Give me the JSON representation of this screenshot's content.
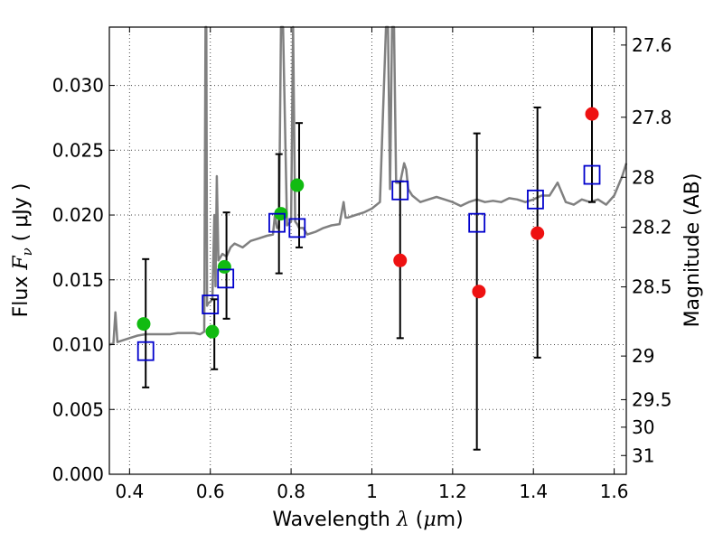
{
  "chart_data": {
    "type": "scatter",
    "xlabel": {
      "prefix": "Wavelength  ",
      "symbol": "λ",
      "unit_open": " (",
      "unit_mu": "μ",
      "unit_rest": "m)"
    },
    "ylabel": {
      "prefix": "Flux  ",
      "symbol": "F",
      "sub": "ν",
      "unit": "  ( μJy )"
    },
    "y2label": "Magnitude (AB)",
    "xlim": [
      0.35,
      1.63
    ],
    "ylim": [
      0.0,
      0.0345
    ],
    "grid": true,
    "x_ticks": [
      {
        "value": 0.4,
        "label": "0.4"
      },
      {
        "value": 0.6,
        "label": "0.6"
      },
      {
        "value": 0.8,
        "label": "0.8"
      },
      {
        "value": 1.0,
        "label": "1"
      },
      {
        "value": 1.2,
        "label": "1.2"
      },
      {
        "value": 1.4,
        "label": "1.4"
      },
      {
        "value": 1.6,
        "label": "1.6"
      }
    ],
    "y_ticks": [
      {
        "value": 0.0,
        "label": "0.000"
      },
      {
        "value": 0.005,
        "label": "0.005"
      },
      {
        "value": 0.01,
        "label": "0.010"
      },
      {
        "value": 0.015,
        "label": "0.015"
      },
      {
        "value": 0.02,
        "label": "0.020"
      },
      {
        "value": 0.025,
        "label": "0.025"
      },
      {
        "value": 0.03,
        "label": "0.030"
      }
    ],
    "y2_ticks": [
      {
        "value": 27.6,
        "label": "27.6"
      },
      {
        "value": 27.8,
        "label": "27.8"
      },
      {
        "value": 28.0,
        "label": "28"
      },
      {
        "value": 28.2,
        "label": "28.2"
      },
      {
        "value": 28.5,
        "label": "28.5"
      },
      {
        "value": 29.0,
        "label": "29"
      },
      {
        "value": 29.5,
        "label": "29.5"
      },
      {
        "value": 30.0,
        "label": "30"
      },
      {
        "value": 31.0,
        "label": "31"
      }
    ],
    "model_spectrum": {
      "color": "#808080",
      "x": [
        0.35,
        0.36,
        0.365,
        0.37,
        0.38,
        0.4,
        0.42,
        0.44,
        0.46,
        0.48,
        0.5,
        0.52,
        0.54,
        0.56,
        0.575,
        0.585,
        0.588,
        0.59,
        0.592,
        0.595,
        0.6,
        0.605,
        0.61,
        0.613,
        0.616,
        0.62,
        0.63,
        0.64,
        0.65,
        0.66,
        0.68,
        0.7,
        0.72,
        0.74,
        0.755,
        0.76,
        0.765,
        0.77,
        0.775,
        0.78,
        0.79,
        0.8,
        0.805,
        0.81,
        0.815,
        0.82,
        0.83,
        0.84,
        0.86,
        0.88,
        0.9,
        0.92,
        0.93,
        0.935,
        0.94,
        0.96,
        0.98,
        1.0,
        1.02,
        1.035,
        1.04,
        1.045,
        1.05,
        1.055,
        1.06,
        1.07,
        1.08,
        1.085,
        1.09,
        1.1,
        1.12,
        1.14,
        1.16,
        1.18,
        1.2,
        1.22,
        1.24,
        1.26,
        1.28,
        1.3,
        1.32,
        1.34,
        1.36,
        1.38,
        1.4,
        1.42,
        1.44,
        1.46,
        1.48,
        1.5,
        1.52,
        1.54,
        1.56,
        1.58,
        1.6,
        1.62,
        1.63
      ],
      "y": [
        0.01,
        0.0101,
        0.0125,
        0.0102,
        0.0103,
        0.0105,
        0.0107,
        0.0108,
        0.0108,
        0.0108,
        0.0108,
        0.0109,
        0.0109,
        0.0109,
        0.0108,
        0.011,
        0.0345,
        0.0345,
        0.013,
        0.0132,
        0.0133,
        0.0135,
        0.02,
        0.0145,
        0.023,
        0.0165,
        0.017,
        0.0168,
        0.0175,
        0.0178,
        0.0175,
        0.018,
        0.0182,
        0.0184,
        0.0185,
        0.02,
        0.019,
        0.019,
        0.0345,
        0.0345,
        0.0192,
        0.0195,
        0.0345,
        0.0195,
        0.0193,
        0.019,
        0.019,
        0.0185,
        0.0187,
        0.019,
        0.0192,
        0.0193,
        0.021,
        0.0198,
        0.0198,
        0.02,
        0.0202,
        0.0205,
        0.021,
        0.0345,
        0.0345,
        0.022,
        0.0345,
        0.0345,
        0.0225,
        0.0225,
        0.024,
        0.0235,
        0.022,
        0.0215,
        0.021,
        0.0212,
        0.0214,
        0.0212,
        0.021,
        0.0207,
        0.021,
        0.0212,
        0.021,
        0.0211,
        0.021,
        0.0213,
        0.0212,
        0.021,
        0.0212,
        0.0215,
        0.0215,
        0.0225,
        0.021,
        0.0208,
        0.0212,
        0.021,
        0.0212,
        0.0208,
        0.0215,
        0.023,
        0.024
      ]
    },
    "observed_green": {
      "color": "#11bb11",
      "x": [
        0.435,
        0.605,
        0.635,
        0.775,
        0.815
      ],
      "y": [
        0.0116,
        0.011,
        0.016,
        0.0201,
        0.0223
      ]
    },
    "observed_red": {
      "color": "#ee1111",
      "x": [
        1.07,
        1.265,
        1.41,
        1.545
      ],
      "y": [
        0.0165,
        0.0141,
        0.0186,
        0.0278
      ]
    },
    "model_squares": {
      "color": "#0000cc",
      "x": [
        0.44,
        0.6,
        0.638,
        0.765,
        0.815,
        1.07,
        1.26,
        1.405,
        1.545
      ],
      "y": [
        0.0095,
        0.0131,
        0.0151,
        0.0194,
        0.019,
        0.0219,
        0.0194,
        0.0212,
        0.0231
      ]
    },
    "error_bars": {
      "color": "#000000",
      "items": [
        {
          "x": 0.44,
          "low": 0.0067,
          "high": 0.0166
        },
        {
          "x": 0.61,
          "low": 0.0081,
          "high": 0.0135
        },
        {
          "x": 0.64,
          "low": 0.012,
          "high": 0.0202
        },
        {
          "x": 0.77,
          "low": 0.0155,
          "high": 0.0247
        },
        {
          "x": 0.82,
          "low": 0.0175,
          "high": 0.0271
        },
        {
          "x": 1.07,
          "low": 0.0105,
          "high": 0.0226
        },
        {
          "x": 1.26,
          "low": 0.0019,
          "high": 0.0263
        },
        {
          "x": 1.41,
          "low": 0.009,
          "high": 0.0283
        },
        {
          "x": 1.545,
          "low": 0.021,
          "high": 0.0345
        }
      ]
    }
  }
}
